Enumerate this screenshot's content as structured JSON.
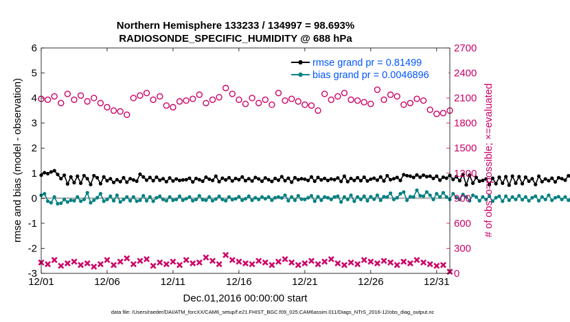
{
  "chart_data": {
    "type": "line",
    "title_line1": "Northern Hemisphere 133233 / 134997 = 98.693%",
    "title_line2": "RADIOSONDE_SPECIFIC_HUMIDITY @ 688 hPa",
    "xlabel": "Dec.01,2016 00:00:00 start",
    "ylabel_left": "rmse and bias (model - observation)",
    "ylabel_right": "# of obs: o=possible; ×=evaluated",
    "footnote": "data file: /Users/raeder/DAI/ATM_forcXX/CAM6_setup/f.e21.FHIST_BGC.f09_025.CAM6assim.011/Diags_NTrS_2016-12/obs_diag_output.nc",
    "x_tick_labels": [
      "12/01",
      "12/06",
      "12/11",
      "12/16",
      "12/21",
      "12/26",
      "12/31"
    ],
    "x_tick_days": [
      0,
      5,
      10,
      15,
      20,
      25,
      30
    ],
    "xlim": [
      0,
      31
    ],
    "left_ticks": [
      "-3",
      "-2",
      "-1",
      "0",
      "1",
      "2",
      "3",
      "4",
      "5",
      "6"
    ],
    "ylim_left": [
      -3,
      6
    ],
    "right_ticks": [
      "0",
      "300",
      "600",
      "900",
      "1200",
      "1500",
      "1800",
      "2100",
      "2400",
      "2700"
    ],
    "ylim_right": [
      0,
      2700
    ],
    "times_step_days": 0.25,
    "series": [
      {
        "name": "rmse grand pr = 0.81499",
        "color": "#000000",
        "values": [
          0.92,
          1.02,
          0.98,
          1.05,
          1.1,
          0.95,
          0.78,
          0.92,
          0.57,
          0.85,
          0.62,
          0.88,
          0.6,
          0.9,
          0.78,
          0.55,
          0.9,
          0.82,
          0.58,
          0.85,
          0.7,
          0.78,
          0.63,
          0.74,
          0.66,
          0.82,
          0.64,
          0.78,
          0.73,
          0.68,
          0.96,
          0.85,
          0.72,
          0.83,
          0.7,
          0.84,
          0.72,
          0.78,
          0.66,
          0.81,
          0.69,
          0.77,
          0.71,
          0.73,
          0.74,
          0.8,
          0.65,
          0.79,
          0.74,
          0.68,
          0.84,
          0.76,
          0.71,
          0.88,
          0.66,
          0.8,
          0.73,
          0.82,
          0.69,
          0.79,
          0.74,
          0.85,
          0.7,
          0.78,
          0.69,
          0.83,
          0.77,
          0.68,
          0.81,
          0.74,
          0.67,
          0.79,
          0.72,
          0.86,
          0.7,
          0.8,
          0.64,
          0.82,
          0.74,
          0.78,
          0.76,
          0.71,
          0.85,
          0.68,
          0.83,
          0.73,
          0.79,
          0.71,
          0.77,
          0.74,
          0.81,
          0.67,
          0.88,
          0.66,
          0.79,
          0.71,
          0.82,
          0.7,
          0.84,
          0.69,
          0.76,
          0.8,
          0.72,
          0.85,
          0.69,
          0.9,
          0.74,
          0.78,
          0.83,
          0.71,
          0.94,
          0.9,
          0.88,
          0.83,
          0.93,
          0.84,
          0.92,
          0.86,
          0.88,
          0.79,
          0.88,
          0.72,
          0.84,
          0.8,
          0.91,
          0.75,
          0.86,
          0.7,
          0.95,
          0.53,
          0.92,
          0.6,
          0.83,
          0.68,
          0.71,
          0.77,
          0.54,
          0.8,
          0.58,
          0.84,
          0.6,
          0.86,
          0.52,
          0.88,
          0.6,
          0.86,
          0.58,
          0.84,
          0.68,
          0.78,
          0.55,
          0.88,
          0.66,
          0.77,
          0.7,
          0.8,
          0.65,
          0.82,
          0.78,
          0.72,
          0.9,
          0.76,
          0.68,
          0.82,
          0.72,
          0.85,
          0.6,
          0.8,
          0.71,
          0.78,
          0.76,
          0.84,
          0.62,
          0.92,
          0.73,
          0.79,
          0.68,
          0.88,
          0.72,
          0.8,
          0.79,
          0.74,
          0.87,
          0.73,
          0.95,
          0.88,
          0.9,
          0.92,
          0.94,
          0.8,
          0.93,
          0.84,
          0.91,
          0.86,
          0.89,
          0.88,
          0.95,
          0.86,
          0.93,
          0.81,
          0.86,
          0.7,
          0.91,
          0.79,
          0.84,
          0.73,
          0.9,
          0.82,
          0.78,
          0.85,
          0.74,
          0.88,
          0.68,
          0.9,
          0.73,
          0.84,
          0.71,
          0.8,
          0.86,
          0.75,
          0.91,
          0.7,
          0.83,
          0.78,
          0.81,
          0.79,
          0.86,
          0.8,
          0.92,
          0.75,
          0.84,
          0.77,
          0.88,
          0.79,
          0.9,
          0.82,
          0.78,
          0.95,
          0.86,
          0.82,
          0.92,
          0.88,
          0.85,
          0.93,
          0.87,
          0.9,
          0.82,
          0.94,
          0.75,
          0.89,
          0.72,
          0.92,
          0.85,
          0.91,
          0.84,
          0.88,
          0.8,
          0.95,
          0.83,
          0.9,
          0.82,
          0.94,
          0.8,
          0.87,
          0.84,
          0.91,
          0.92,
          0.95,
          0.88,
          0.97,
          0.91,
          0.94,
          0.93,
          0.96,
          0.9,
          0.93,
          0.86,
          0.95,
          0.89,
          0.93,
          0.9,
          0.97,
          0.94,
          0.91,
          0.96,
          0.89,
          0.93,
          0.88,
          0.95,
          0.9,
          0.96,
          0.92,
          0.92,
          0.88,
          0.93,
          0.9,
          0.91,
          0.93,
          0.95,
          0.89,
          0.93,
          0.91,
          0.95,
          0.9,
          0.94,
          0.92,
          0.95,
          0.93,
          0.85,
          0.91,
          0.88,
          0.93,
          0.91,
          0.94,
          0.9,
          0.86,
          0.93,
          0.88,
          0.95,
          0.87,
          0.92,
          0.82,
          0.93,
          0.78,
          0.89,
          0.75,
          0.94,
          0.85,
          0.92,
          0.88,
          0.78,
          0.95,
          0.85,
          0.6,
          0.9,
          0.55,
          0.85,
          0.55,
          0.82,
          0.58,
          0.78,
          0.6,
          0.86,
          0.54,
          0.9,
          0.62,
          0.86,
          0.55,
          0.84,
          0.7,
          0.8,
          0.73,
          0.88,
          0.76,
          0.69,
          0.86,
          0.72,
          0.84,
          0.7,
          0.78,
          0.75,
          0.86,
          0.71,
          0.83,
          0.72,
          0.86,
          0.68,
          0.88,
          0.74,
          0.8,
          0.76,
          0.85,
          0.72,
          0.87,
          0.71,
          0.82,
          0.74,
          0.8,
          0.78,
          0.83,
          0.78,
          0.81,
          0.68,
          0.74
        ],
        "marker": "circle"
      },
      {
        "name": "bias grand pr = 0.0046896",
        "color": "#008080",
        "values": [
          0.12,
          0.18,
          -0.12,
          -0.18,
          0.05,
          -0.22,
          -0.2,
          -0.05,
          -0.15,
          -0.08,
          -0.1,
          0.05,
          -0.12,
          -0.05,
          0.22,
          -0.18,
          -0.08,
          0.02,
          0.18,
          -0.12,
          -0.05,
          0.08,
          -0.1,
          0.12,
          -0.15,
          -0.05,
          0.05,
          -0.1,
          0.05,
          -0.12,
          -0.08,
          0.1,
          -0.1,
          0.05,
          -0.12,
          0.02,
          0.08,
          -0.05,
          -0.1,
          0.05,
          -0.08,
          -0.05,
          0.08,
          -0.08,
          -0.02,
          0.05,
          -0.1,
          -0.05,
          0.1,
          -0.06,
          -0.08,
          0.05,
          -0.1,
          -0.03,
          0.08,
          -0.05,
          -0.1,
          0.05,
          -0.06,
          -0.02,
          0.06,
          -0.08,
          -0.02,
          0.08,
          -0.08,
          0.02,
          -0.05,
          0.05,
          -0.02,
          0.05,
          -0.08,
          0.02,
          0.05,
          0.01,
          0.12,
          -0.1,
          0.05,
          -0.08,
          0.1,
          -0.04,
          -0.05,
          0.02,
          0.1,
          -0.12,
          0.06,
          -0.08,
          0.05,
          0.02,
          -0.05,
          0.05,
          0.08,
          -0.15,
          0.05,
          -0.05,
          0.12,
          -0.12,
          0.05,
          -0.05,
          0.08,
          -0.1,
          0.06,
          -0.04,
          0.12,
          -0.08,
          0.06,
          0.05,
          0.2,
          -0.05,
          0.02,
          0.18,
          0.25,
          -0.08,
          0.06,
          0.05,
          0.32,
          0.1,
          0.08,
          0.25,
          0.12,
          -0.05,
          0.18,
          0.05,
          0.22,
          0.05,
          -0.05,
          0.18,
          0.02,
          -0.05,
          0.15,
          0.05,
          -0.1,
          0.12,
          0.05,
          -0.1,
          0.05,
          -0.05,
          0.08,
          -0.12,
          0.02,
          0.08,
          -0.12,
          0.08,
          -0.08,
          0.05,
          -0.05,
          0.1,
          -0.06,
          0.05,
          -0.1,
          0.02,
          0.08,
          -0.1,
          0.05,
          -0.05,
          0.12,
          -0.08,
          0.02,
          0.06,
          -0.05,
          0.05,
          -0.08,
          0.1,
          -0.05,
          0.05,
          0.18,
          -0.1,
          0.05,
          0.2,
          -0.05,
          0.1,
          -0.08,
          0.05,
          0.12,
          -0.06,
          0.08,
          0.22,
          -0.05,
          0.05,
          0.12,
          -0.08,
          0.02,
          0.15,
          -0.05,
          0.08,
          0.1,
          0.05,
          0.12,
          -0.05,
          0.1,
          0.22,
          0.15,
          0.32,
          0.18,
          0.12,
          0.25,
          0.05,
          0.2,
          0.15,
          0.1,
          0.02,
          0.18,
          -0.05,
          0.12,
          0.06,
          0.2,
          0.08,
          0.1,
          -0.05,
          0.15,
          0.05,
          -0.05,
          0.12,
          0.02,
          0.1,
          -0.05,
          0.08,
          0.05,
          -0.08,
          0.12,
          -0.05,
          0.1,
          0.02,
          -0.1,
          0.08,
          0.05,
          -0.05,
          0.02,
          0.1,
          -0.08,
          0.05,
          0.02,
          0.1,
          -0.06,
          0.05,
          0.02,
          -0.05,
          0.1,
          0.05,
          0.08,
          -0.05,
          0.12,
          0.2,
          0.05,
          0.15,
          0.05,
          0.22,
          0.1,
          0.05,
          0.18,
          0.08,
          0.2,
          -0.02,
          0.15,
          0.1,
          0.05,
          0.22,
          -0.05,
          0.15,
          0.08,
          0.2,
          0.05,
          -0.05,
          0.1,
          0.05,
          0.12,
          -0.04,
          0.15,
          0.05,
          0.1,
          0.2,
          0.1,
          0.15,
          0.05,
          0.2,
          0.1,
          0.12,
          0.08,
          0.05,
          0.15,
          0.12,
          0.18,
          0.05,
          0.12,
          0.1,
          0.02,
          0.18,
          0.05,
          0.15,
          0.08,
          0.12,
          -0.02,
          0.15,
          0.05,
          0.1,
          -0.05,
          0.1,
          0.02,
          -0.18,
          0.08,
          -0.12,
          0.05,
          -0.05,
          0.1,
          -0.18,
          0.05,
          0.02,
          -0.08,
          0.12,
          0.05,
          -0.02,
          0.1,
          -0.05,
          0.12,
          0.05,
          -0.1,
          0.1,
          -0.15,
          0.15,
          -0.05,
          0.08,
          -0.12,
          0.12,
          0.05,
          -0.08,
          0.1,
          0.02,
          -0.05,
          0.12,
          -0.05,
          0.08,
          -0.12,
          0.05,
          -0.1,
          0.08,
          -0.05,
          0.05,
          -0.12,
          0.1,
          -0.08,
          0.12,
          0.02,
          -0.1,
          0.08,
          -0.1,
          0.05,
          -0.08,
          0.1,
          -0.05,
          0.12,
          0.05,
          -0.08,
          0.08,
          -0.05,
          0.05,
          0.1,
          0.02,
          -0.05,
          0.12,
          0.05,
          0.08,
          -0.02,
          0.1,
          0.05,
          -0.05,
          0.12,
          -0.02,
          0.05,
          0.1,
          0.02,
          -0.05,
          0.15,
          0.05,
          0.08,
          0.22,
          0.18
        ],
        "marker": "circle"
      }
    ],
    "obs_possible": {
      "name": "possible",
      "color": "#cc0066",
      "marker": "circle",
      "x": [
        0,
        0.5,
        1,
        1.5,
        2,
        2.5,
        3,
        3.5,
        4,
        4.5,
        5,
        5.5,
        6,
        6.5,
        7,
        7.5,
        8,
        8.5,
        9,
        9.5,
        10,
        10.5,
        11,
        11.5,
        12,
        12.5,
        13,
        13.5,
        14,
        14.5,
        15,
        15.5,
        16,
        16.5,
        17,
        17.5,
        18,
        18.5,
        19,
        19.5,
        20,
        20.5,
        21,
        21.5,
        22,
        22.5,
        23,
        23.5,
        24,
        24.5,
        25,
        25.5,
        26,
        26.5,
        27,
        27.5,
        28,
        28.5,
        29,
        29.5,
        30,
        30.5,
        31
      ],
      "values": [
        2090,
        2080,
        2120,
        2040,
        2150,
        2080,
        2130,
        2060,
        2100,
        2040,
        1990,
        1950,
        1940,
        1900,
        2100,
        2130,
        2160,
        2080,
        2120,
        2010,
        1990,
        2060,
        2070,
        2090,
        2140,
        2040,
        2080,
        2110,
        2220,
        2150,
        2080,
        2030,
        2100,
        2040,
        2080,
        2020,
        2160,
        2070,
        2090,
        2060,
        2020,
        2010,
        1950,
        2150,
        2080,
        2120,
        2160,
        2080,
        2070,
        2050,
        2030,
        2200,
        2080,
        2140,
        2120,
        2020,
        2040,
        2090,
        2070,
        1960,
        1910,
        1920,
        1950
      ]
    },
    "obs_evaluated": {
      "name": "evaluated",
      "color": "#cc0066",
      "marker": "x",
      "x": [
        0,
        0.5,
        1,
        1.5,
        2,
        2.5,
        3,
        3.5,
        4,
        4.5,
        5,
        5.5,
        6,
        6.5,
        7,
        7.5,
        8,
        8.5,
        9,
        9.5,
        10,
        10.5,
        11,
        11.5,
        12,
        12.5,
        13,
        13.5,
        14,
        14.5,
        15,
        15.5,
        16,
        16.5,
        17,
        17.5,
        18,
        18.5,
        19,
        19.5,
        20,
        20.5,
        21,
        21.5,
        22,
        22.5,
        23,
        23.5,
        24,
        24.5,
        25,
        25.5,
        26,
        26.5,
        27,
        27.5,
        28,
        28.5,
        29,
        29.5,
        30,
        30.5,
        31
      ],
      "values": [
        130,
        110,
        160,
        90,
        120,
        140,
        100,
        120,
        80,
        110,
        160,
        100,
        140,
        180,
        110,
        150,
        170,
        90,
        130,
        110,
        140,
        100,
        160,
        120,
        130,
        190,
        150,
        110,
        220,
        160,
        140,
        120,
        110,
        150,
        130,
        100,
        140,
        170,
        130,
        100,
        120,
        150,
        110,
        140,
        170,
        120,
        100,
        130,
        110,
        160,
        140,
        120,
        150,
        130,
        100,
        140,
        120,
        160,
        130,
        110,
        90,
        100,
        20
      ]
    }
  }
}
